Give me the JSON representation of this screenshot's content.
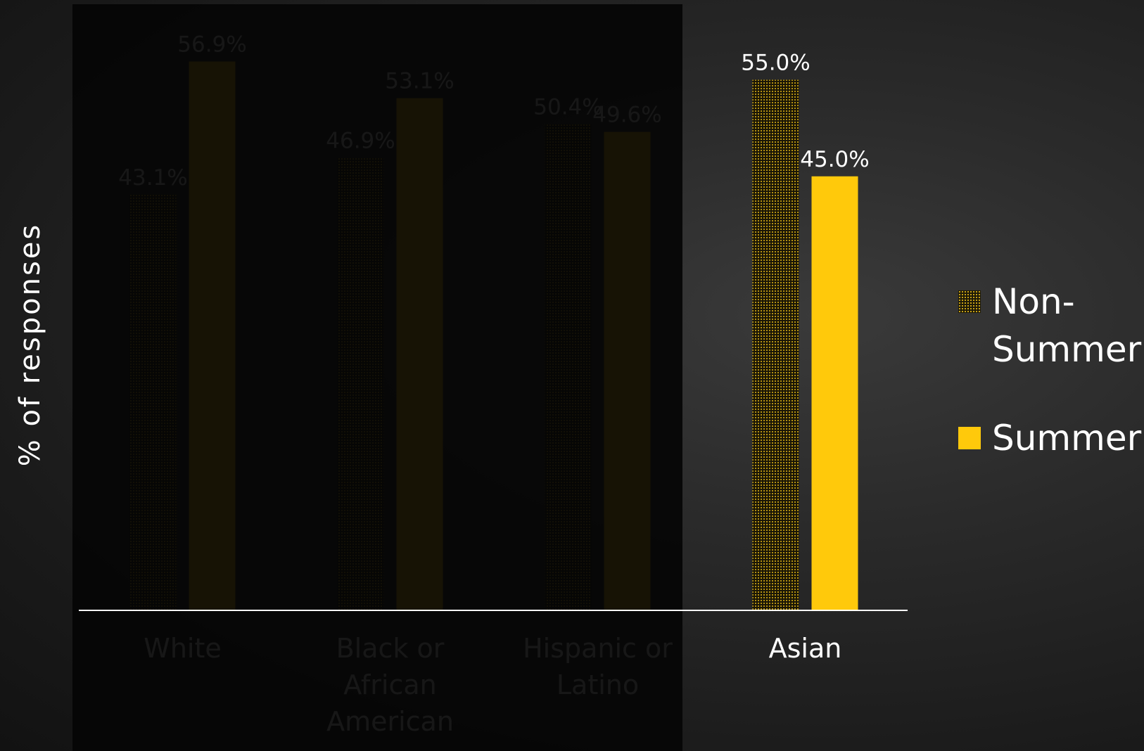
{
  "chart_data": {
    "type": "bar",
    "categories": [
      "White",
      "Black or African American",
      "Hispanic or Latino",
      "Asian"
    ],
    "category_lines": [
      [
        "White"
      ],
      [
        "Black or",
        "African",
        "American"
      ],
      [
        "Hispanic or",
        "Latino"
      ],
      [
        "Asian"
      ]
    ],
    "series": [
      {
        "name": "Non-Summer",
        "values": [
          43.1,
          46.9,
          50.4,
          55.0
        ],
        "labels": [
          "43.1%",
          "46.9%",
          "50.4%",
          "55.0%"
        ],
        "pattern": "dotted"
      },
      {
        "name": "Summer",
        "values": [
          56.9,
          53.1,
          49.6,
          45.0
        ],
        "labels": [
          "56.9%",
          "53.1%",
          "49.6%",
          "45.0%"
        ],
        "pattern": "solid"
      }
    ],
    "ylabel": "% of responses",
    "ylim": [
      0,
      60
    ],
    "grid": false,
    "legend": "right",
    "dimmed_categories": [
      "White",
      "Black or African American",
      "Hispanic or Latino"
    ],
    "highlighted_category": "Asian"
  },
  "legend": {
    "items": [
      {
        "label": "Non-Summer",
        "lines": [
          "Non-",
          "Summer"
        ]
      },
      {
        "label": "Summer",
        "lines": [
          "Summer"
        ]
      }
    ]
  },
  "colors": {
    "accent": "#ffc90b",
    "dot": "#f3c317",
    "text": "#ffffff",
    "overlay": "#050505"
  }
}
